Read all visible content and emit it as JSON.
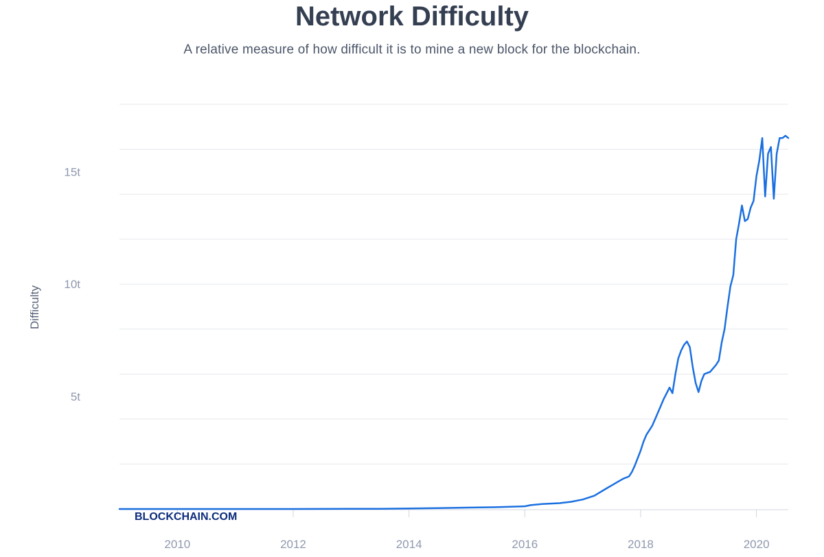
{
  "header": {
    "title": "Network Difficulty",
    "subtitle": "A relative measure of how difficult it is to mine a new block for the blockchain."
  },
  "watermark": "BLOCKCHAIN.COM",
  "colors": {
    "line": "#1a6fe0",
    "grid": "#e6e8ee",
    "axis": "#d0d5df"
  },
  "chart_data": {
    "type": "line",
    "title": "Network Difficulty",
    "xlabel": "",
    "ylabel": "Difficulty",
    "xlim": [
      2009.0,
      2020.55
    ],
    "ylim": [
      0,
      18
    ],
    "grid": true,
    "x_ticks": [
      2010,
      2012,
      2014,
      2016,
      2018,
      2020
    ],
    "x_tick_labels": [
      "2010",
      "2012",
      "2014",
      "2016",
      "2018",
      "2020"
    ],
    "y_ticks": [
      5,
      10,
      15
    ],
    "y_tick_labels": [
      "5t",
      "10t",
      "15t"
    ],
    "y_gridlines": [
      2,
      4,
      6,
      8,
      10,
      12,
      14,
      16,
      18
    ],
    "series": [
      {
        "name": "Difficulty (trillions)",
        "x": [
          2009.0,
          2012.0,
          2013.5,
          2014.0,
          2014.5,
          2015.0,
          2015.5,
          2016.0,
          2016.1,
          2016.3,
          2016.6,
          2016.8,
          2017.0,
          2017.2,
          2017.4,
          2017.6,
          2017.7,
          2017.8,
          2017.85,
          2017.9,
          2018.0,
          2018.05,
          2018.1,
          2018.15,
          2018.2,
          2018.3,
          2018.4,
          2018.5,
          2018.55,
          2018.6,
          2018.65,
          2018.7,
          2018.75,
          2018.8,
          2018.85,
          2018.9,
          2018.95,
          2019.0,
          2019.05,
          2019.1,
          2019.2,
          2019.3,
          2019.35,
          2019.4,
          2019.45,
          2019.5,
          2019.55,
          2019.6,
          2019.65,
          2019.7,
          2019.75,
          2019.8,
          2019.85,
          2019.9,
          2019.95,
          2020.0,
          2020.05,
          2020.1,
          2020.15,
          2020.2,
          2020.25,
          2020.3,
          2020.35,
          2020.4,
          2020.45,
          2020.5,
          2020.55
        ],
        "values": [
          0.0,
          0.001,
          0.01,
          0.02,
          0.04,
          0.06,
          0.08,
          0.12,
          0.17,
          0.22,
          0.26,
          0.32,
          0.42,
          0.59,
          0.9,
          1.2,
          1.35,
          1.45,
          1.65,
          1.93,
          2.6,
          3.0,
          3.3,
          3.5,
          3.7,
          4.3,
          4.9,
          5.4,
          5.15,
          6.0,
          6.7,
          7.05,
          7.3,
          7.45,
          7.2,
          6.3,
          5.6,
          5.2,
          5.7,
          6.0,
          6.1,
          6.4,
          6.6,
          7.4,
          8.0,
          9.0,
          9.9,
          10.4,
          12.0,
          12.7,
          13.5,
          12.8,
          12.9,
          13.4,
          13.7,
          14.8,
          15.5,
          16.5,
          13.9,
          15.8,
          16.1,
          13.8,
          15.8,
          16.5,
          16.5,
          16.6,
          16.5
        ]
      }
    ]
  }
}
